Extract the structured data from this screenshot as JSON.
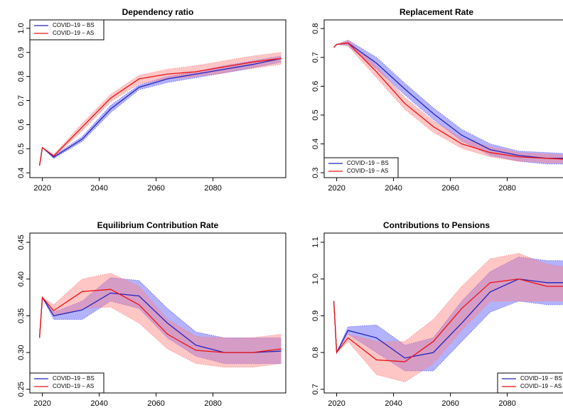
{
  "chart_data": [
    {
      "type": "line",
      "title": "Dependency ratio",
      "legend": "top-left",
      "x": [
        2019,
        2020,
        2024,
        2034,
        2044,
        2054,
        2064,
        2074,
        2084,
        2094,
        2104
      ],
      "xlim": [
        2015.6,
        2105.6
      ],
      "xticks": [
        2020,
        2040,
        2060,
        2080
      ],
      "ylim": [
        0.38,
        1.035
      ],
      "yticks": [
        0.4,
        0.5,
        0.6,
        0.7,
        0.8,
        0.9,
        {
          "value": 1.0,
          "label": "1.0"
        }
      ],
      "series": [
        {
          "name": "COVID−19 − BS",
          "color": "#2222bb",
          "band_color": "#5555ff",
          "values": [
            0.43,
            0.505,
            0.465,
            0.54,
            0.665,
            0.755,
            0.79,
            0.81,
            0.83,
            0.85,
            0.875
          ],
          "lower": [
            0.43,
            0.505,
            0.46,
            0.53,
            0.65,
            0.745,
            0.775,
            0.795,
            0.815,
            0.835,
            0.86
          ],
          "upper": [
            0.43,
            0.505,
            0.47,
            0.55,
            0.68,
            0.765,
            0.8,
            0.82,
            0.845,
            0.865,
            0.885
          ]
        },
        {
          "name": "COVID−19 − AS",
          "color": "#ee1111",
          "band_color": "#ff8080",
          "values": [
            0.43,
            0.505,
            0.47,
            0.59,
            0.71,
            0.79,
            0.81,
            0.82,
            0.84,
            0.86,
            0.875
          ],
          "lower": [
            0.43,
            0.505,
            0.465,
            0.575,
            0.695,
            0.77,
            0.79,
            0.8,
            0.815,
            0.835,
            0.85
          ],
          "upper": [
            0.43,
            0.505,
            0.475,
            0.605,
            0.725,
            0.805,
            0.83,
            0.845,
            0.865,
            0.885,
            0.9
          ]
        }
      ]
    },
    {
      "type": "line",
      "title": "Replacement Rate",
      "legend": "bottom-left",
      "x": [
        2019,
        2020,
        2024,
        2034,
        2044,
        2054,
        2064,
        2074,
        2084,
        2094,
        2104
      ],
      "xlim": [
        2015.6,
        2105.6
      ],
      "xticks": [
        2020,
        2040,
        2060,
        2080
      ],
      "ylim": [
        0.283,
        0.83
      ],
      "yticks": [
        0.3,
        0.4,
        0.5,
        0.6,
        0.7,
        0.8
      ],
      "series": [
        {
          "name": "COVID−19 − BS",
          "color": "#2222bb",
          "band_color": "#5555ff",
          "values": [
            0.735,
            0.745,
            0.75,
            0.68,
            0.59,
            0.505,
            0.43,
            0.38,
            0.36,
            0.35,
            0.35
          ],
          "lower": [
            0.735,
            0.745,
            0.74,
            0.66,
            0.57,
            0.485,
            0.41,
            0.36,
            0.34,
            0.33,
            0.33
          ],
          "upper": [
            0.735,
            0.745,
            0.76,
            0.7,
            0.61,
            0.525,
            0.45,
            0.4,
            0.375,
            0.37,
            0.365
          ]
        },
        {
          "name": "COVID−19 − AS",
          "color": "#ee1111",
          "band_color": "#ff8080",
          "values": [
            0.735,
            0.745,
            0.75,
            0.65,
            0.54,
            0.46,
            0.4,
            0.37,
            0.355,
            0.35,
            0.345
          ],
          "lower": [
            0.735,
            0.745,
            0.74,
            0.63,
            0.52,
            0.44,
            0.385,
            0.355,
            0.34,
            0.335,
            0.33
          ],
          "upper": [
            0.735,
            0.745,
            0.76,
            0.67,
            0.56,
            0.48,
            0.42,
            0.39,
            0.37,
            0.365,
            0.36
          ]
        }
      ]
    },
    {
      "type": "line",
      "title": "Equilibrium Contribution Rate",
      "legend": "bottom-left",
      "x": [
        2019,
        2020,
        2024,
        2034,
        2044,
        2054,
        2064,
        2074,
        2084,
        2094,
        2104
      ],
      "xlim": [
        2015.6,
        2105.6
      ],
      "xticks": [
        2020,
        2040,
        2060,
        2080
      ],
      "ylim": [
        0.245,
        0.4626
      ],
      "yticks": [
        0.25,
        {
          "value": 0.3,
          "label": "0.30"
        },
        0.35,
        {
          "value": 0.4,
          "label": "0.40"
        },
        0.45
      ],
      "series": [
        {
          "name": "COVID−19 − BS",
          "color": "#2222bb",
          "band_color": "#5555ff",
          "values": [
            0.32,
            0.375,
            0.35,
            0.358,
            0.381,
            0.377,
            0.34,
            0.31,
            0.3,
            0.3,
            0.302
          ],
          "lower": [
            0.32,
            0.375,
            0.345,
            0.345,
            0.37,
            0.36,
            0.32,
            0.295,
            0.285,
            0.285,
            0.285
          ],
          "upper": [
            0.32,
            0.375,
            0.355,
            0.37,
            0.402,
            0.398,
            0.36,
            0.328,
            0.32,
            0.32,
            0.32
          ]
        },
        {
          "name": "COVID−19 − AS",
          "color": "#ee1111",
          "band_color": "#ff8080",
          "values": [
            0.32,
            0.375,
            0.357,
            0.383,
            0.386,
            0.365,
            0.325,
            0.303,
            0.3,
            0.3,
            0.305
          ],
          "lower": [
            0.32,
            0.375,
            0.35,
            0.36,
            0.362,
            0.34,
            0.305,
            0.285,
            0.28,
            0.28,
            0.285
          ],
          "upper": [
            0.32,
            0.375,
            0.365,
            0.4,
            0.408,
            0.39,
            0.345,
            0.322,
            0.32,
            0.32,
            0.325
          ]
        }
      ]
    },
    {
      "type": "line",
      "title": "Contributions to Pensions",
      "legend": "bottom-right",
      "x": [
        2019,
        2020,
        2024,
        2034,
        2044,
        2054,
        2064,
        2074,
        2084,
        2094,
        2104
      ],
      "xlim": [
        2015.6,
        2105.6
      ],
      "xticks": [
        2020,
        2040,
        2060,
        2080
      ],
      "ylim": [
        0.69,
        1.125
      ],
      "yticks": [
        0.7,
        0.8,
        0.9,
        {
          "value": 1.0,
          "label": "1.0"
        },
        1.1
      ],
      "series": [
        {
          "name": "COVID−19 − BS",
          "color": "#2222bb",
          "band_color": "#5555ff",
          "values": [
            0.94,
            0.8,
            0.86,
            0.84,
            0.785,
            0.8,
            0.88,
            0.965,
            1.0,
            0.99,
            0.99
          ],
          "lower": [
            0.94,
            0.8,
            0.85,
            0.8,
            0.75,
            0.75,
            0.83,
            0.91,
            0.94,
            0.93,
            0.93
          ],
          "upper": [
            0.94,
            0.8,
            0.87,
            0.875,
            0.82,
            0.84,
            0.94,
            1.02,
            1.06,
            1.05,
            1.05
          ]
        },
        {
          "name": "COVID−19 − AS",
          "color": "#ee1111",
          "band_color": "#ff8080",
          "values": [
            0.94,
            0.8,
            0.84,
            0.78,
            0.775,
            0.83,
            0.92,
            0.99,
            1.0,
            0.98,
            0.98
          ],
          "lower": [
            0.94,
            0.8,
            0.83,
            0.74,
            0.72,
            0.77,
            0.86,
            0.94,
            0.94,
            0.94,
            0.94
          ],
          "upper": [
            0.94,
            0.8,
            0.85,
            0.83,
            0.83,
            0.89,
            0.98,
            1.055,
            1.07,
            1.04,
            1.03
          ]
        }
      ]
    }
  ]
}
